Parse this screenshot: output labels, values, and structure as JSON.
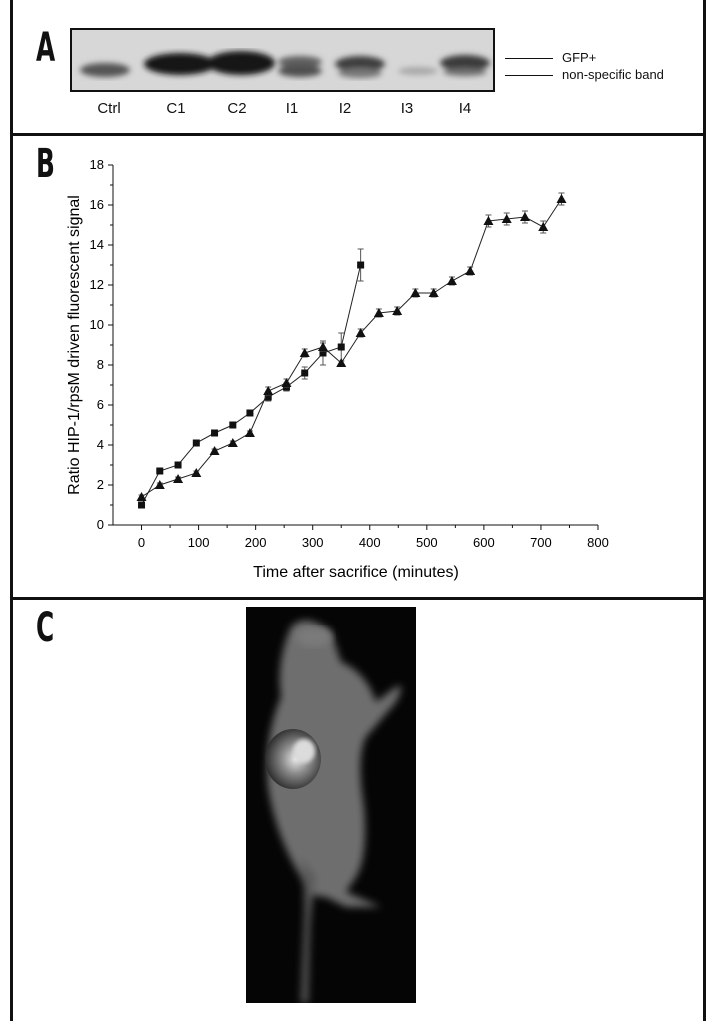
{
  "panels": {
    "a": {
      "letter": "A"
    },
    "b": {
      "letter": "B"
    },
    "c": {
      "letter": "C"
    }
  },
  "blot": {
    "lanes": [
      "Ctrl",
      "C1",
      "C2",
      "I1",
      "I2",
      "I3",
      "I4"
    ],
    "band_labels": {
      "upper": "GFP+",
      "lower": "non-specific band"
    }
  },
  "chart_data": {
    "type": "line",
    "title": "",
    "xlabel": "Time after sacrifice (minutes)",
    "ylabel": "Ratio HIP-1/rpsM driven fluorescent signal",
    "xlim": [
      -50,
      800
    ],
    "ylim": [
      0,
      18
    ],
    "xticks": [
      0,
      100,
      200,
      300,
      400,
      500,
      600,
      700,
      800
    ],
    "yticks": [
      0,
      2,
      4,
      6,
      8,
      10,
      12,
      14,
      16,
      18
    ],
    "grid": false,
    "series": [
      {
        "marker": "square",
        "x": [
          0,
          32,
          64,
          96,
          128,
          160,
          190,
          222,
          254,
          286,
          318,
          350,
          384
        ],
        "y": [
          1.0,
          2.7,
          3.0,
          4.1,
          4.6,
          5.0,
          5.6,
          6.4,
          6.9,
          7.6,
          8.6,
          8.9,
          13.0
        ],
        "err": [
          0.1,
          0.1,
          0.1,
          0.1,
          0.1,
          0.1,
          0.1,
          0.2,
          0.2,
          0.3,
          0.6,
          0.7,
          0.8
        ]
      },
      {
        "marker": "triangle",
        "x": [
          0,
          32,
          64,
          96,
          128,
          160,
          190,
          222,
          254,
          286,
          318,
          350,
          384,
          416,
          448,
          480,
          512,
          544,
          576,
          608,
          640,
          672,
          704,
          736
        ],
        "y": [
          1.4,
          2.0,
          2.3,
          2.6,
          3.7,
          4.1,
          4.6,
          6.7,
          7.1,
          8.6,
          8.9,
          8.1,
          9.6,
          10.6,
          10.7,
          11.6,
          11.6,
          12.2,
          12.7,
          15.2,
          15.3,
          15.4,
          14.9,
          16.3
        ],
        "err": [
          0.1,
          0.1,
          0.1,
          0.1,
          0.1,
          0.1,
          0.1,
          0.2,
          0.2,
          0.2,
          0.2,
          0.1,
          0.2,
          0.2,
          0.2,
          0.2,
          0.2,
          0.2,
          0.2,
          0.3,
          0.3,
          0.3,
          0.3,
          0.3
        ]
      }
    ]
  }
}
